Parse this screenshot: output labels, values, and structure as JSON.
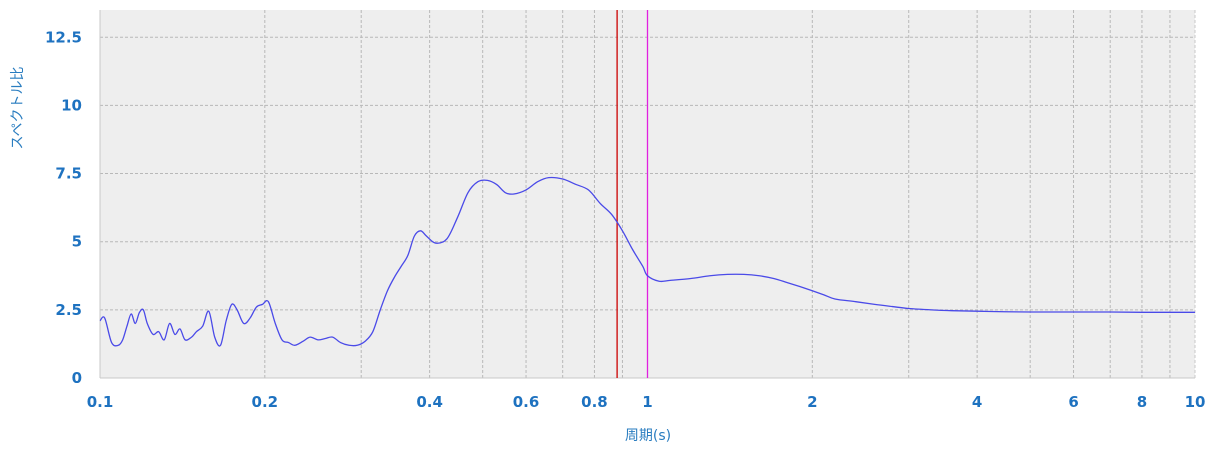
{
  "chart_data": {
    "type": "line",
    "xlabel": "周期(s)",
    "ylabel": "スペクトル比",
    "xscale": "log",
    "xlim": [
      0.1,
      10
    ],
    "ylim": [
      0,
      13.5
    ],
    "grid": true,
    "xticks": [
      {
        "value": 0.1,
        "label": "0.1"
      },
      {
        "value": 0.2,
        "label": "0.2"
      },
      {
        "value": 0.4,
        "label": "0.4"
      },
      {
        "value": 0.6,
        "label": "0.6"
      },
      {
        "value": 0.8,
        "label": "0.8"
      },
      {
        "value": 1,
        "label": "1"
      },
      {
        "value": 2,
        "label": "2"
      },
      {
        "value": 4,
        "label": "4"
      },
      {
        "value": 6,
        "label": "6"
      },
      {
        "value": 8,
        "label": "8"
      },
      {
        "value": 10,
        "label": "10"
      }
    ],
    "yticks": [
      {
        "value": 0,
        "label": "0"
      },
      {
        "value": 2.5,
        "label": "2.5"
      },
      {
        "value": 5,
        "label": "5"
      },
      {
        "value": 7.5,
        "label": "7.5"
      },
      {
        "value": 10,
        "label": "10"
      },
      {
        "value": 12.5,
        "label": "12.5"
      }
    ],
    "series": [
      {
        "color": "#4a4ae8",
        "x": [
          0.1,
          0.102,
          0.105,
          0.108,
          0.11,
          0.112,
          0.114,
          0.116,
          0.118,
          0.12,
          0.122,
          0.125,
          0.128,
          0.131,
          0.134,
          0.137,
          0.14,
          0.143,
          0.147,
          0.15,
          0.154,
          0.158,
          0.162,
          0.166,
          0.17,
          0.174,
          0.178,
          0.183,
          0.188,
          0.193,
          0.198,
          0.203,
          0.209,
          0.215,
          0.221,
          0.227,
          0.235,
          0.242,
          0.25,
          0.258,
          0.266,
          0.275,
          0.285,
          0.295,
          0.305,
          0.315,
          0.325,
          0.335,
          0.345,
          0.355,
          0.365,
          0.375,
          0.385,
          0.395,
          0.41,
          0.43,
          0.45,
          0.47,
          0.49,
          0.51,
          0.53,
          0.55,
          0.57,
          0.6,
          0.63,
          0.66,
          0.7,
          0.74,
          0.78,
          0.82,
          0.86,
          0.9,
          0.94,
          0.98,
          1.0,
          1.05,
          1.1,
          1.2,
          1.3,
          1.4,
          1.5,
          1.6,
          1.7,
          1.8,
          1.9,
          2.0,
          2.1,
          2.2,
          2.4,
          2.6,
          2.8,
          3.0,
          3.3,
          3.6,
          4.0,
          4.5,
          5.0,
          5.5,
          6.0,
          7.0,
          8.0,
          9.0,
          10.0
        ],
        "y": [
          2.1,
          2.2,
          1.3,
          1.2,
          1.4,
          1.9,
          2.35,
          2.0,
          2.4,
          2.5,
          2.0,
          1.6,
          1.7,
          1.4,
          2.0,
          1.6,
          1.8,
          1.4,
          1.5,
          1.7,
          1.9,
          2.45,
          1.5,
          1.2,
          2.1,
          2.7,
          2.5,
          2.0,
          2.2,
          2.6,
          2.7,
          2.8,
          2.0,
          1.4,
          1.3,
          1.2,
          1.35,
          1.5,
          1.4,
          1.45,
          1.5,
          1.3,
          1.2,
          1.2,
          1.35,
          1.7,
          2.5,
          3.2,
          3.7,
          4.1,
          4.5,
          5.2,
          5.4,
          5.2,
          4.95,
          5.1,
          5.9,
          6.8,
          7.2,
          7.25,
          7.1,
          6.8,
          6.75,
          6.9,
          7.2,
          7.35,
          7.3,
          7.1,
          6.9,
          6.4,
          6.0,
          5.4,
          4.7,
          4.1,
          3.75,
          3.55,
          3.58,
          3.65,
          3.75,
          3.8,
          3.8,
          3.75,
          3.65,
          3.5,
          3.35,
          3.2,
          3.05,
          2.9,
          2.8,
          2.7,
          2.62,
          2.55,
          2.5,
          2.47,
          2.45,
          2.43,
          2.42,
          2.42,
          2.42,
          2.42,
          2.41,
          2.41,
          2.41
        ]
      }
    ],
    "vlines": [
      {
        "x": 0.88,
        "color": "#cc0000"
      },
      {
        "x": 1.0,
        "color": "#e020e0"
      }
    ],
    "colors": {
      "plot_bg": "#eeeeee",
      "grid": "#b8b8b8",
      "tick_text": "#1e72c0",
      "axis_label": "#2a7dc0"
    }
  }
}
